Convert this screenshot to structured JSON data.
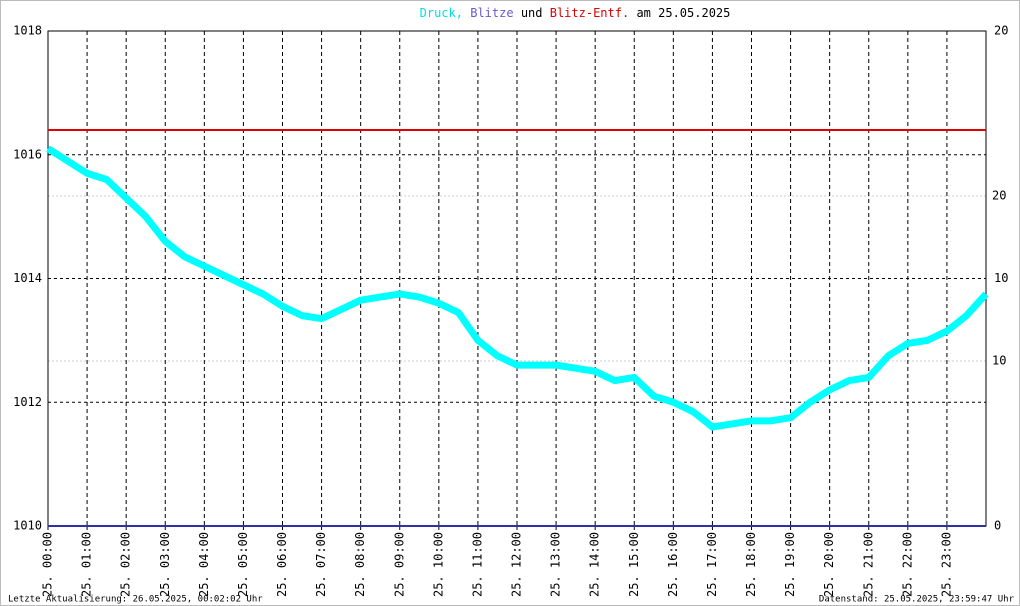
{
  "chart_data": {
    "type": "line",
    "title_connectors": [
      ",",
      "und",
      "am 25.05.2025"
    ],
    "xlim": [
      0,
      24
    ],
    "xticks": [
      {
        "value": 0,
        "label": "25. 00:00"
      },
      {
        "value": 1,
        "label": "25. 01:00"
      },
      {
        "value": 2,
        "label": "25. 02:00"
      },
      {
        "value": 3,
        "label": "25. 03:00"
      },
      {
        "value": 4,
        "label": "25. 04:00"
      },
      {
        "value": 5,
        "label": "25. 05:00"
      },
      {
        "value": 6,
        "label": "25. 06:00"
      },
      {
        "value": 7,
        "label": "25. 07:00"
      },
      {
        "value": 8,
        "label": "25. 08:00"
      },
      {
        "value": 9,
        "label": "25. 09:00"
      },
      {
        "value": 10,
        "label": "25. 10:00"
      },
      {
        "value": 11,
        "label": "25. 11:00"
      },
      {
        "value": 12,
        "label": "25. 12:00"
      },
      {
        "value": 13,
        "label": "25. 13:00"
      },
      {
        "value": 14,
        "label": "25. 14:00"
      },
      {
        "value": 15,
        "label": "25. 15:00"
      },
      {
        "value": 16,
        "label": "25. 16:00"
      },
      {
        "value": 17,
        "label": "25. 17:00"
      },
      {
        "value": 18,
        "label": "25. 18:00"
      },
      {
        "value": 19,
        "label": "25. 19:00"
      },
      {
        "value": 20,
        "label": "25. 20:00"
      },
      {
        "value": 21,
        "label": "25. 21:00"
      },
      {
        "value": 22,
        "label": "25. 22:00"
      },
      {
        "value": 23,
        "label": "25. 23:00"
      }
    ],
    "ylim": [
      1010,
      1018
    ],
    "yticks": [
      1010,
      1012,
      1014,
      1016,
      1018
    ],
    "y2lim": [
      0,
      20
    ],
    "y2ticks": [
      0,
      10,
      20
    ],
    "y3lim": [
      0,
      30
    ],
    "y3ticks": [
      10,
      20
    ],
    "y3color": "#e00000",
    "grid": true,
    "series": [
      {
        "name": "Druck",
        "color": "#00ffff",
        "axis": "y",
        "x": [
          0,
          0.5,
          1,
          1.5,
          2,
          2.5,
          3,
          3.5,
          4,
          4.5,
          5,
          5.5,
          6,
          6.5,
          7,
          7.5,
          8,
          8.5,
          9,
          9.5,
          10,
          10.5,
          11,
          11.5,
          12,
          12.5,
          13,
          13.5,
          14,
          14.5,
          15,
          15.5,
          16,
          16.5,
          17,
          17.5,
          18,
          18.5,
          19,
          19.5,
          20,
          20.5,
          21,
          21.5,
          22,
          22.5,
          23,
          23.5,
          24
        ],
        "values": [
          1016.1,
          1015.9,
          1015.7,
          1015.6,
          1015.3,
          1015.0,
          1014.6,
          1014.35,
          1014.2,
          1014.05,
          1013.9,
          1013.75,
          1013.55,
          1013.4,
          1013.35,
          1013.5,
          1013.65,
          1013.7,
          1013.75,
          1013.7,
          1013.6,
          1013.45,
          1013.0,
          1012.75,
          1012.6,
          1012.6,
          1012.6,
          1012.55,
          1012.5,
          1012.35,
          1012.4,
          1012.1,
          1012.0,
          1011.85,
          1011.6,
          1011.65,
          1011.7,
          1011.7,
          1011.75,
          1012.0,
          1012.2,
          1012.35,
          1012.4,
          1012.75,
          1012.95,
          1013.0,
          1013.15,
          1013.4,
          1013.75
        ]
      },
      {
        "name": "Blitze",
        "color": "#3030a0",
        "axis": "y2",
        "x": [
          0,
          24
        ],
        "values": [
          0,
          0
        ]
      },
      {
        "name": "Blitz-Entf.",
        "color": "#e00000",
        "axis": "y3",
        "x": [
          0,
          24
        ],
        "values": [
          24,
          24
        ]
      }
    ],
    "footer_left": "Letzte Aktualisierung: 26.05.2025, 00:02:02 Uhr",
    "footer_right": "Datenstand: 25.05.2025, 23:59:47 Uhr"
  }
}
